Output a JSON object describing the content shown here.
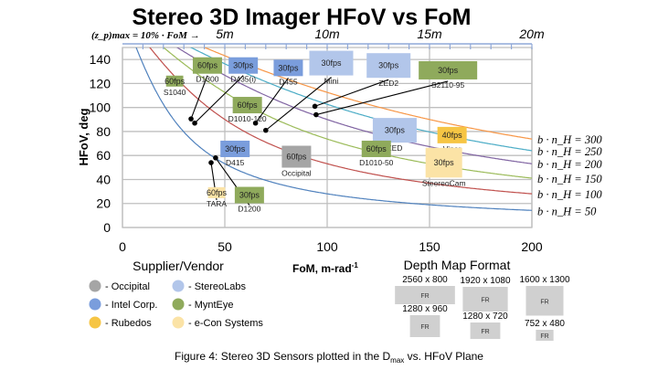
{
  "chart_data": {
    "type": "scatter",
    "title": "Stereo 3D Imager HFoV vs FoM",
    "xlabel": "FoM, m-rad",
    "xlabel_sup": "-1",
    "ylabel": "HFoV, deg",
    "xlim": [
      0,
      200
    ],
    "ylim": [
      0,
      150
    ],
    "xticks": [
      0,
      50,
      100,
      150,
      200
    ],
    "yticks": [
      0,
      20,
      40,
      60,
      80,
      100,
      120,
      140
    ],
    "grid": true,
    "top_axis": {
      "formula_label": "(z_p)max = 10% · FoM →",
      "ticks": [
        {
          "fom": 50,
          "label": "5m"
        },
        {
          "fom": 100,
          "label": "10m"
        },
        {
          "fom": 150,
          "label": "15m"
        },
        {
          "fom": 200,
          "label": "20m"
        }
      ]
    },
    "curves": [
      {
        "bn": 50,
        "label": "b · n_H = 50",
        "color": "#4f81bd"
      },
      {
        "bn": 100,
        "label": "b · n_H = 100",
        "color": "#c0504d"
      },
      {
        "bn": 150,
        "label": "b · n_H = 150",
        "color": "#9bbb59"
      },
      {
        "bn": 200,
        "label": "b · n_H = 200",
        "color": "#8064a2"
      },
      {
        "bn": 250,
        "label": "b · n_H = 250",
        "color": "#4bacc6"
      },
      {
        "bn": 300,
        "label": "b · n_H = 300",
        "color": "#f79646"
      }
    ],
    "vendors": [
      {
        "key": "occipital",
        "label": "- Occipital",
        "color": "#a5a5a5"
      },
      {
        "key": "intel",
        "label": "- Intel Corp.",
        "color": "#7a9ddc"
      },
      {
        "key": "rubedos",
        "label": "- Rubedos",
        "color": "#f6c544"
      },
      {
        "key": "stereolabs",
        "label": "- StereoLabs",
        "color": "#b2c6ea"
      },
      {
        "key": "mynteye",
        "label": "- MyntEye",
        "color": "#8faa5c"
      },
      {
        "key": "econ",
        "label": "- e-Con Systems",
        "color": "#fbe3a6"
      }
    ],
    "vendor_legend_title": "Supplier/Vendor",
    "format_legend_title": "Depth Map Format",
    "formats": [
      {
        "label": "2560 x 800",
        "w": 2560,
        "h": 800,
        "box": "FR"
      },
      {
        "label": "1920 x 1080",
        "w": 1920,
        "h": 1080,
        "box": "FR"
      },
      {
        "label": "1600 x 1300",
        "w": 1600,
        "h": 1300,
        "box": "FR"
      },
      {
        "label": "1280 x 960",
        "w": 1280,
        "h": 960,
        "box": "FR"
      },
      {
        "label": "1280 x 720",
        "w": 1280,
        "h": 720,
        "box": "FR"
      },
      {
        "label": "752 x 480",
        "w": 752,
        "h": 480,
        "box": "FR"
      }
    ],
    "sensors": [
      {
        "name": "S1040",
        "fps": "60fps",
        "vendor": "mynteye",
        "format": "752 x 480",
        "fom": 25.5,
        "hfov": 122
      },
      {
        "name": "D1300",
        "fps": "60fps",
        "vendor": "mynteye",
        "format": "1280 x 720",
        "fom": 41.5,
        "hfov": 135
      },
      {
        "name": "D435(i)",
        "fps": "30fps",
        "vendor": "intel",
        "format": "1280 x 720",
        "fom": 59,
        "hfov": 135
      },
      {
        "name": "D455",
        "fps": "30fps",
        "vendor": "intel",
        "format": "1280 x 720",
        "fom": 81,
        "hfov": 133
      },
      {
        "name": "Mini",
        "fps": "30fps",
        "vendor": "stereolabs",
        "format": "1920 x 1080",
        "fom": 102,
        "hfov": 137
      },
      {
        "name": "ZED2",
        "fps": "30fps",
        "vendor": "stereolabs",
        "format": "1920 x 1080",
        "fom": 130,
        "hfov": 135
      },
      {
        "name": "S2110-95",
        "fps": "30fps",
        "vendor": "mynteye",
        "format": "2560 x 800",
        "fom": 159,
        "hfov": 131
      },
      {
        "name": "D1010-120",
        "fps": "60fps",
        "vendor": "mynteye",
        "format": "1280 x 720",
        "fom": 61,
        "hfov": 102
      },
      {
        "name": "ZED",
        "fps": "30fps",
        "vendor": "stereolabs",
        "format": "1920 x 1080",
        "fom": 133,
        "hfov": 81
      },
      {
        "name": "Viper",
        "fps": "40fps",
        "vendor": "rubedos",
        "format": "1280 x 720",
        "fom": 161,
        "hfov": 77
      },
      {
        "name": "D1010-50",
        "fps": "60fps",
        "vendor": "mynteye",
        "format": "1280 x 720",
        "fom": 124,
        "hfov": 65.5
      },
      {
        "name": "SteereoCam",
        "fps": "30fps",
        "vendor": "econ",
        "format": "1600 x 1300",
        "fom": 157,
        "hfov": 54
      },
      {
        "name": "D415",
        "fps": "30fps",
        "vendor": "intel",
        "format": "1280 x 720",
        "fom": 55,
        "hfov": 65.5
      },
      {
        "name": "Occipital",
        "fps": "60fps",
        "vendor": "occipital",
        "format": "1280 x 960",
        "fom": 85,
        "hfov": 59
      },
      {
        "name": "TARA",
        "fps": "60fps",
        "vendor": "econ",
        "format": "752 x 480",
        "fom": 46,
        "hfov": 29
      },
      {
        "name": "D1200",
        "fps": "30fps",
        "vendor": "mynteye",
        "format": "1280 x 720",
        "fom": 62,
        "hfov": 27
      }
    ],
    "points": [
      {
        "sensor": "D1300",
        "fom": 33.5,
        "hfov": 90.5
      },
      {
        "sensor": "D435(i)",
        "fom": 35.3,
        "hfov": 87
      },
      {
        "sensor": "D455",
        "fom": 65,
        "hfov": 87
      },
      {
        "sensor": "Mini",
        "fom": 70,
        "hfov": 81
      },
      {
        "sensor": "ZED2",
        "fom": 94,
        "hfov": 101
      },
      {
        "sensor": "S2110-95",
        "fom": 94.6,
        "hfov": 94
      },
      {
        "sensor": "TARA",
        "fom": 43.3,
        "hfov": 54
      },
      {
        "sensor": "D1200",
        "fom": 45.5,
        "hfov": 58
      }
    ]
  },
  "caption": "Figure 4: Stereo 3D Sensors plotted in the D",
  "caption_sub": "max",
  "caption_end": " vs. HFoV Plane"
}
